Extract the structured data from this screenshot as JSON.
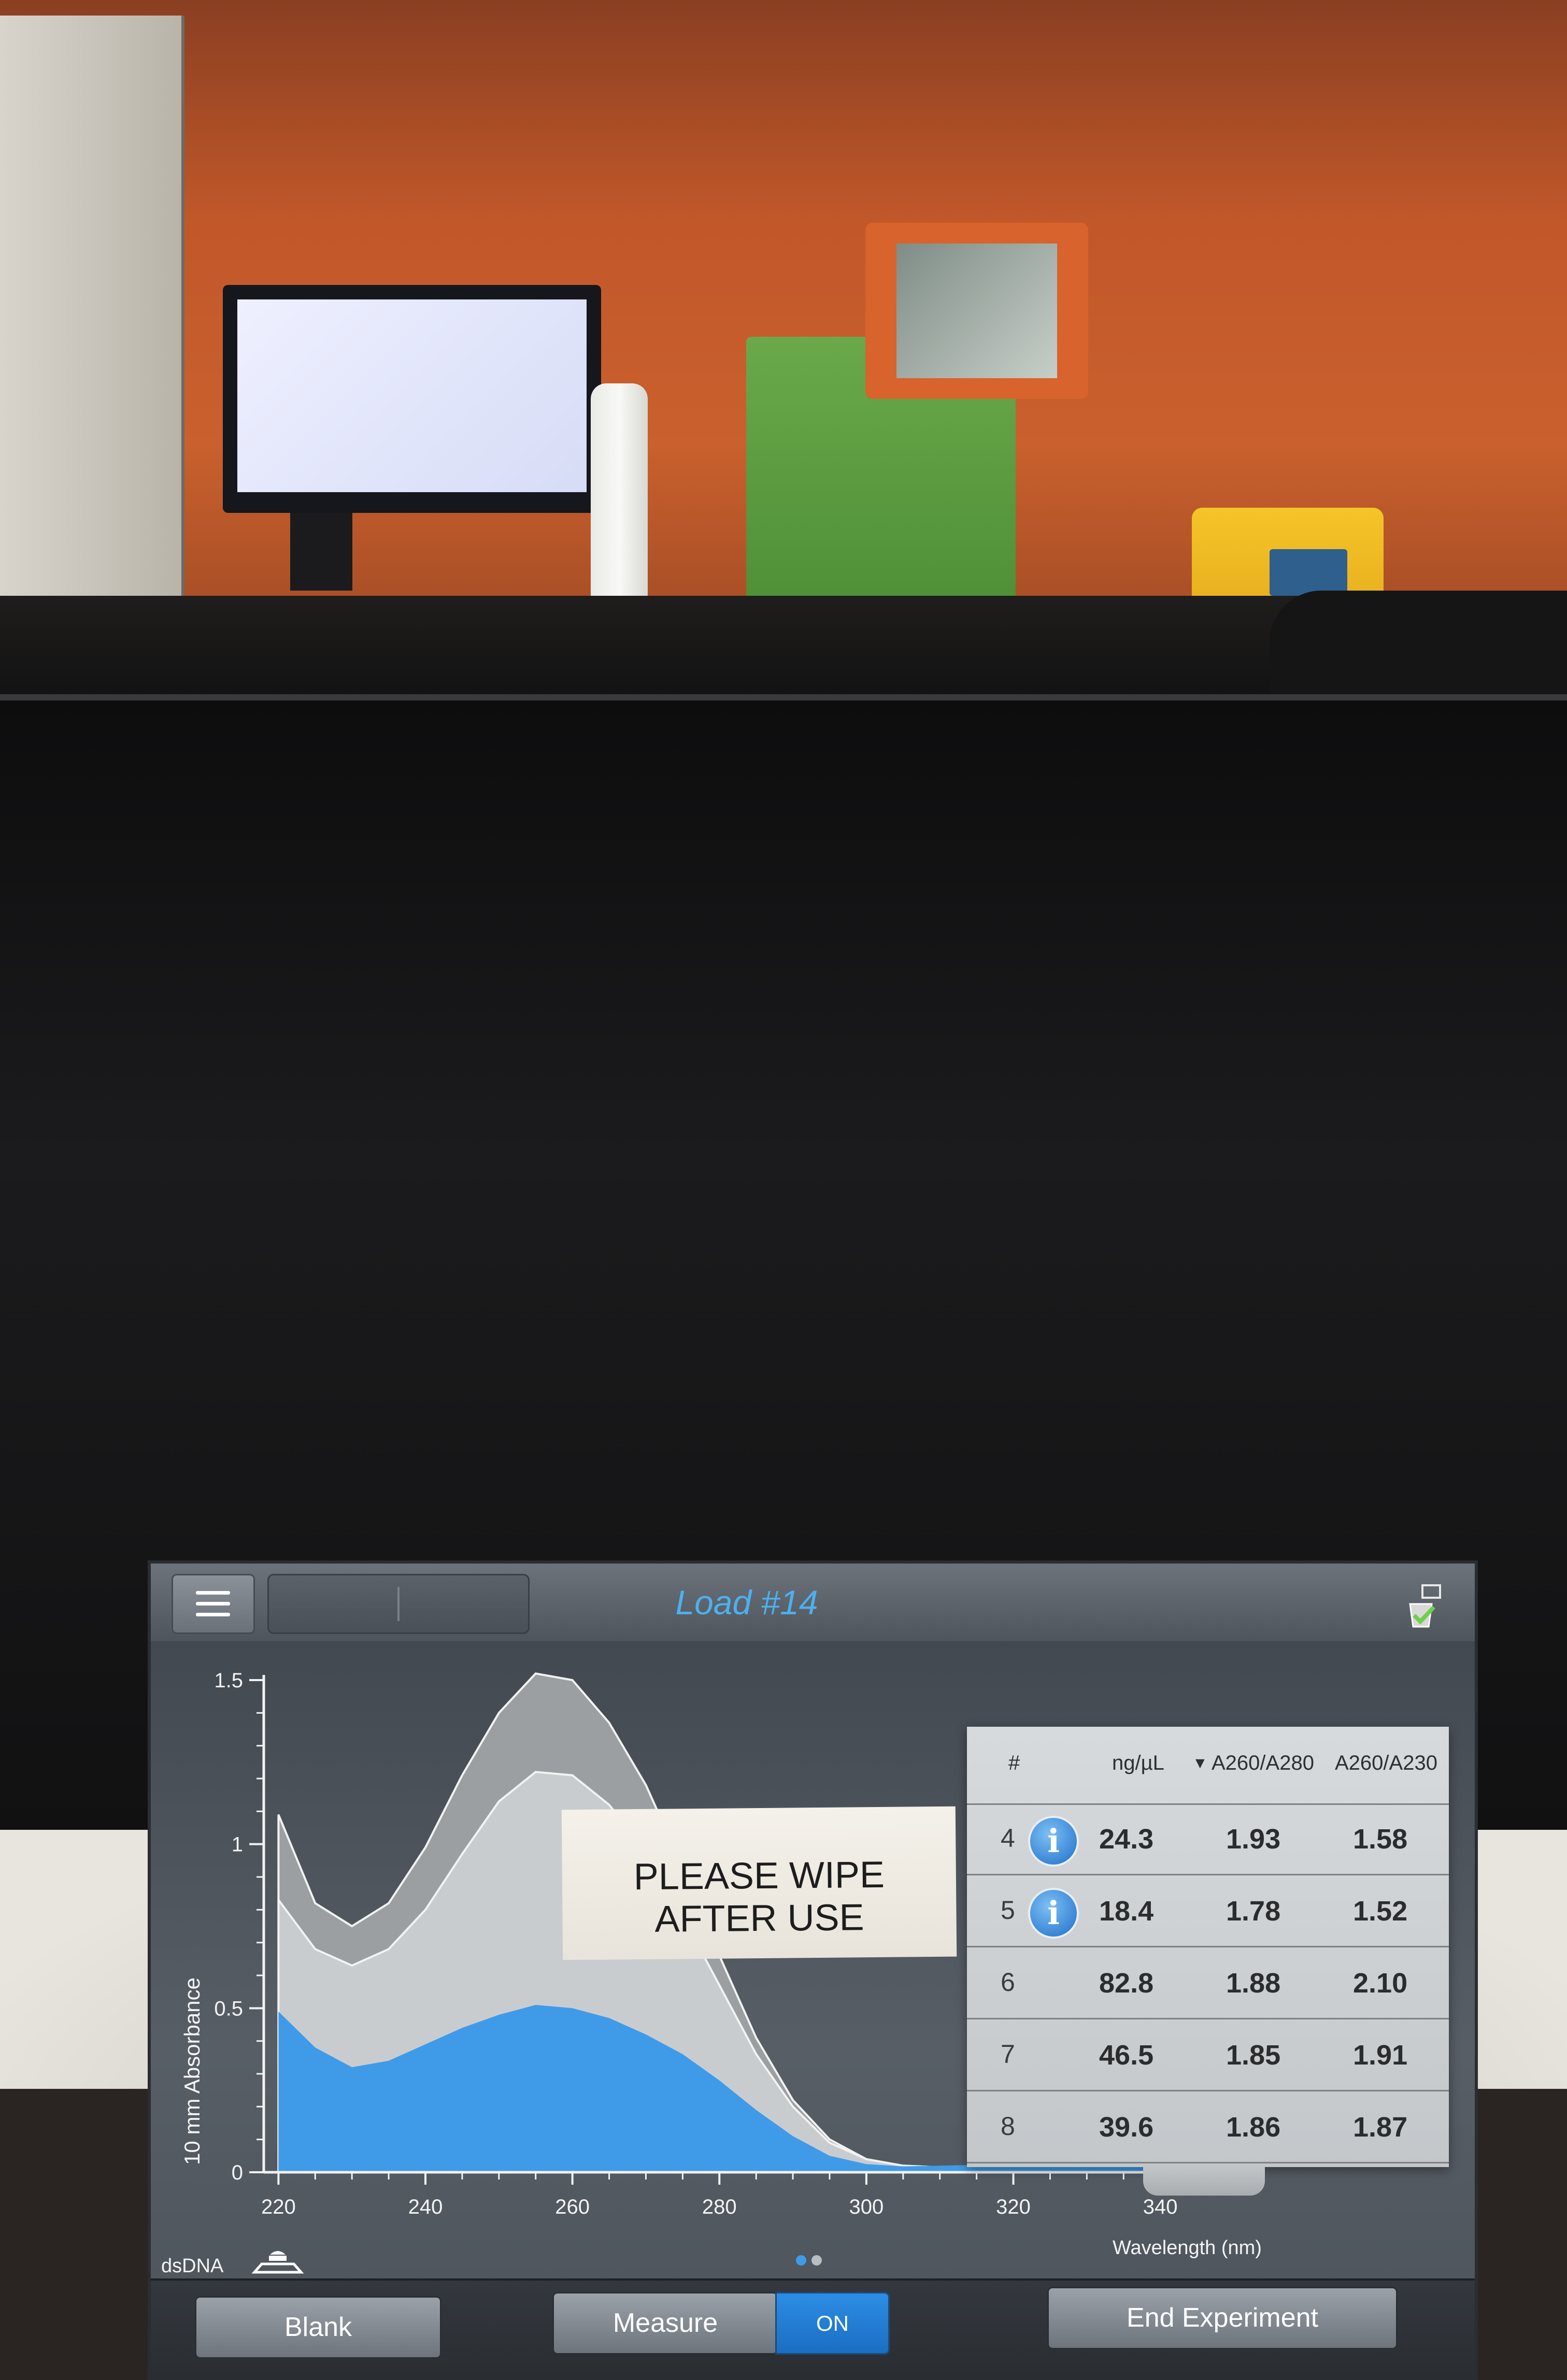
{
  "header": {
    "title": "Load #14"
  },
  "chart_data": {
    "type": "area",
    "ylabel": "10 mm Absorbance",
    "xlabel": "Wavelength (nm)",
    "xlim": [
      218,
      350
    ],
    "ylim": [
      0,
      1.5
    ],
    "x_ticks": [
      "220",
      "240",
      "260",
      "280",
      "300",
      "320",
      "340"
    ],
    "y_ticks": [
      "0",
      "0.5",
      "1",
      "1.5"
    ],
    "series": [
      {
        "color": "#3f9be8",
        "x": [
          220,
          225,
          230,
          235,
          240,
          245,
          250,
          255,
          260,
          265,
          270,
          275,
          280,
          285,
          290,
          295,
          300,
          305,
          310,
          320,
          330,
          340,
          350
        ],
        "y": [
          0.49,
          0.38,
          0.32,
          0.34,
          0.39,
          0.44,
          0.48,
          0.51,
          0.5,
          0.47,
          0.42,
          0.36,
          0.28,
          0.19,
          0.11,
          0.05,
          0.025,
          0.018,
          0.02,
          0.025,
          0.03,
          0.035,
          0.04
        ]
      },
      {
        "color": "#c9ccce",
        "x": [
          220,
          225,
          230,
          235,
          240,
          245,
          250,
          255,
          260,
          265,
          270,
          275,
          280,
          285,
          290,
          295,
          300,
          305,
          310,
          320,
          330,
          340,
          350
        ],
        "y": [
          0.83,
          0.68,
          0.63,
          0.68,
          0.8,
          0.97,
          1.13,
          1.22,
          1.21,
          1.12,
          0.98,
          0.78,
          0.57,
          0.36,
          0.2,
          0.09,
          0.04,
          0.02,
          0.015,
          0.015,
          0.015,
          0.015,
          0.015
        ]
      },
      {
        "color": "#9b9fa2",
        "x": [
          220,
          225,
          230,
          235,
          240,
          245,
          250,
          255,
          260,
          265,
          270,
          275,
          280,
          285,
          290,
          295,
          300,
          305,
          310,
          320,
          330,
          340,
          350
        ],
        "y": [
          1.09,
          0.82,
          0.75,
          0.82,
          0.99,
          1.21,
          1.4,
          1.52,
          1.5,
          1.37,
          1.18,
          0.93,
          0.66,
          0.41,
          0.22,
          0.1,
          0.04,
          0.02,
          0.015,
          0.015,
          0.015,
          0.015,
          0.015
        ]
      }
    ]
  },
  "assay": {
    "label": "dsDNA"
  },
  "results": {
    "headers": {
      "num": "#",
      "conc": "ng/µL",
      "a260_280": "A260/A280",
      "a260_230": "A260/A230"
    },
    "rows": [
      {
        "num": "4",
        "info": "i",
        "conc": "24.3",
        "a260_280": "1.93",
        "a260_230": "1.58"
      },
      {
        "num": "5",
        "info": "i",
        "conc": "18.4",
        "a260_280": "1.78",
        "a260_230": "1.52"
      },
      {
        "num": "6",
        "info": "",
        "conc": "82.8",
        "a260_280": "1.88",
        "a260_230": "2.10"
      },
      {
        "num": "7",
        "info": "",
        "conc": "46.5",
        "a260_280": "1.85",
        "a260_230": "1.91"
      },
      {
        "num": "8",
        "info": "",
        "conc": "39.6",
        "a260_280": "1.86",
        "a260_230": "1.87"
      }
    ]
  },
  "buttons": {
    "blank": "Blank",
    "measure": "Measure",
    "toggle": "ON",
    "end": "End Experiment"
  },
  "pagination": {
    "current_page": 1,
    "total_pages": 2
  },
  "sticker": {
    "text": "PLEASE WIPE AFTER USE"
  },
  "colors": {
    "title_accent": "#4db0ee",
    "sample_fill": "#3f9be8",
    "toggle_on": "#2d8de5"
  }
}
